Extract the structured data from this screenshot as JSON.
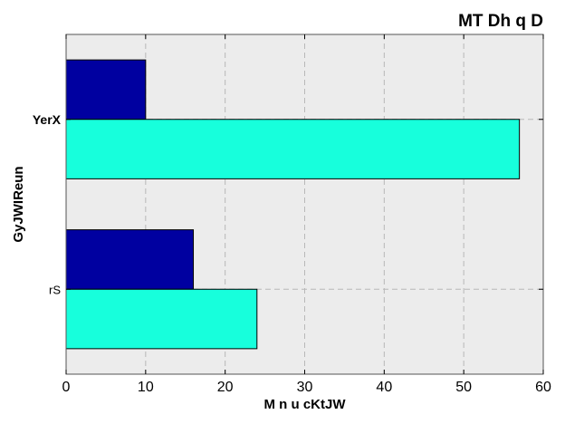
{
  "chart_data": {
    "type": "bar",
    "orientation": "horizontal",
    "title": "MT Dh q  D",
    "xlabel": "M n u cKtJW",
    "ylabel": "GyJWIReun",
    "categories": [
      "rS",
      "YerX"
    ],
    "series": [
      {
        "values": [
          16,
          10
        ],
        "color": "#0000a0"
      },
      {
        "values": [
          24,
          57
        ],
        "color": "#17ffdc"
      }
    ],
    "xlim": [
      0,
      60
    ],
    "xticks": [
      "0",
      "10",
      "20",
      "30",
      "40",
      "50",
      "60"
    ],
    "grid": true,
    "background_color": "#ececec",
    "legend": false
  }
}
